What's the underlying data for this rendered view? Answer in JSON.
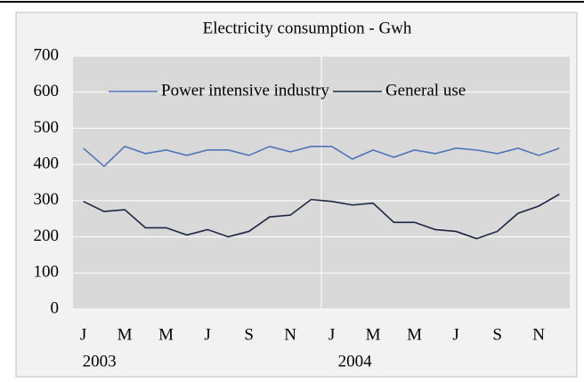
{
  "chart_data": {
    "type": "line",
    "title": "Electricity consumption - Gwh",
    "categories": [
      "J",
      null,
      "M",
      null,
      "M",
      null,
      "J",
      null,
      "S",
      null,
      "N",
      null,
      "J",
      null,
      "M",
      null,
      "M",
      null,
      "J",
      null,
      "S",
      null,
      "N",
      null
    ],
    "groups": [
      "2003",
      "2004"
    ],
    "series": [
      {
        "name": "Power intensive industry",
        "color": "#4f74b8",
        "values": [
          445,
          395,
          450,
          430,
          440,
          425,
          440,
          440,
          425,
          450,
          435,
          450,
          450,
          415,
          440,
          420,
          440,
          430,
          445,
          440,
          430,
          445,
          425,
          445
        ]
      },
      {
        "name": "General use",
        "color": "#1c2541",
        "values": [
          298,
          270,
          275,
          225,
          225,
          205,
          220,
          200,
          215,
          255,
          260,
          303,
          298,
          288,
          293,
          240,
          240,
          220,
          215,
          195,
          215,
          265,
          285,
          318
        ]
      }
    ],
    "ylim": [
      0,
      700
    ],
    "yticks": [
      0,
      100,
      200,
      300,
      400,
      500,
      600,
      700
    ],
    "grid": true,
    "legend": "top"
  }
}
